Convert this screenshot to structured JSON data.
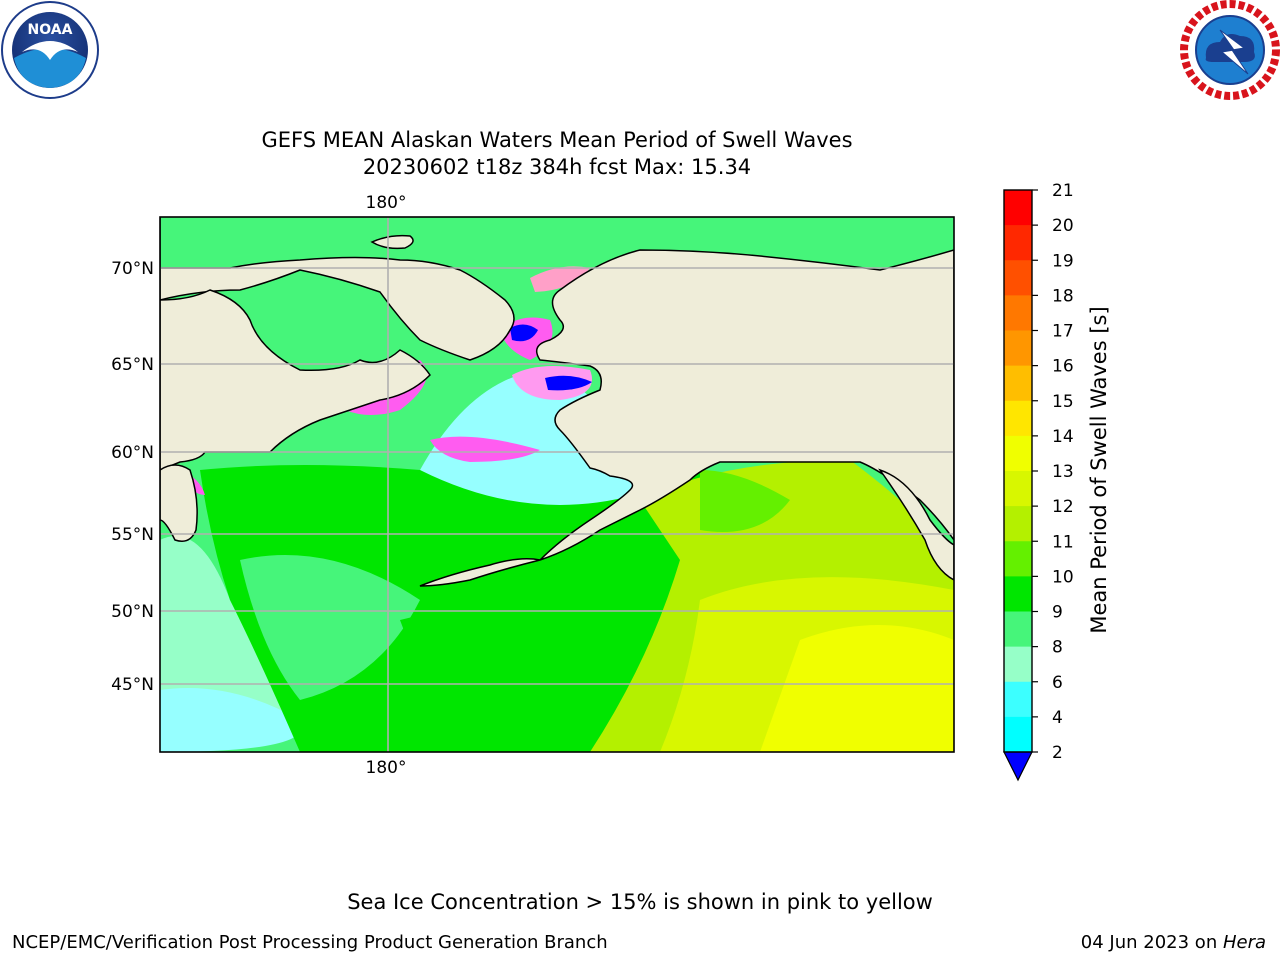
{
  "header": {
    "title_line1": "GEFS MEAN Alaskan Waters Mean Period of Swell Waves",
    "title_line2": "20230602 t18z 384h fcst   Max: 15.34"
  },
  "logos": {
    "left": "NOAA",
    "right": "NATIONAL WEATHER SERVICE"
  },
  "map": {
    "lon_labels": [
      "180°"
    ],
    "lat_labels": [
      "70°N",
      "65°N",
      "60°N",
      "55°N",
      "50°N",
      "45°N"
    ],
    "land_color": "#efedd9",
    "grid_color": "#b0b0b0"
  },
  "colorbar": {
    "label": "Mean Period of Swell Waves [s]",
    "ticks": [
      "21",
      "20",
      "19",
      "18",
      "17",
      "16",
      "15",
      "14",
      "13",
      "12",
      "11",
      "10",
      "9",
      "8",
      "6",
      "4",
      "2"
    ],
    "colors": [
      "#ff0000",
      "#ff2800",
      "#ff5000",
      "#ff7800",
      "#ff9600",
      "#ffbe00",
      "#ffe600",
      "#f0ff00",
      "#d8f700",
      "#b4f000",
      "#64f000",
      "#00e600",
      "#46f57a",
      "#96ffc8",
      "#3cffff",
      "#00ffff",
      "#00b4ff",
      "#0064ff"
    ],
    "extend_color": "#0000ff"
  },
  "footer": {
    "note": "Sea Ice Concentration > 15% is shown in pink to yellow",
    "branch": "NCEP/EMC/Verification Post Processing Product Generation Branch",
    "date": "04 Jun 2023 on ",
    "machine": "Hera"
  }
}
